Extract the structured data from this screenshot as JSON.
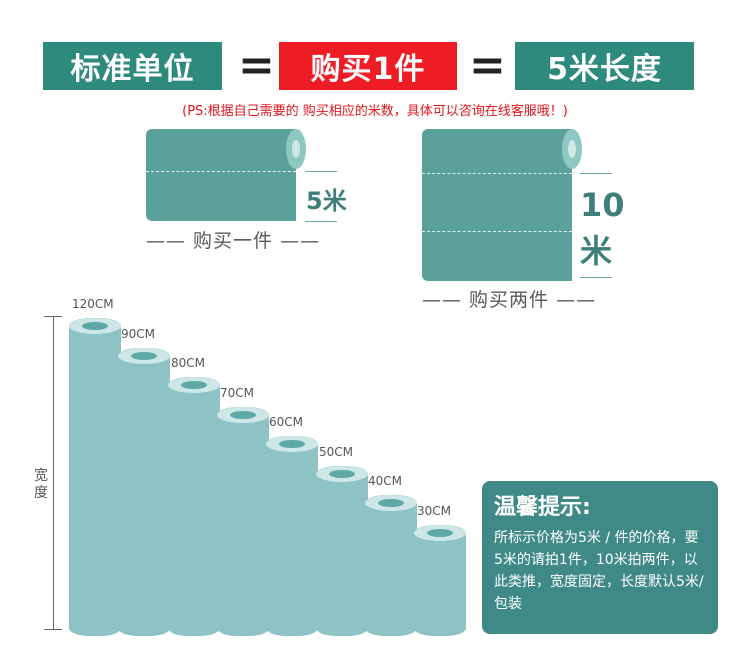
{
  "header": {
    "box1": "标准单位",
    "box2": "购买1件",
    "box3": "5米长度",
    "equals": "=",
    "colors": {
      "teal": "#2f8a7e",
      "red": "#ee1c25"
    }
  },
  "note": "(PS:根据自己需要的 购买相应的米数，具体可以咨询在线客服哦！)",
  "roll_one": {
    "length_label": "5米",
    "caption": "—— 购买一件 ——"
  },
  "roll_two": {
    "length_label_top": "10",
    "length_label_bottom": "米",
    "caption": "—— 购买两件 ——"
  },
  "width_axis_label": "宽度",
  "widths": [
    "120CM",
    "90CM",
    "80CM",
    "70CM",
    "60CM",
    "50CM",
    "40CM",
    "30CM"
  ],
  "tip": {
    "title": "温馨提示:",
    "text": "所标示价格为5米 / 件的价格，要5米的请拍1件，10米拍两件，以此类推，宽度固定，长度默认5米/包装"
  }
}
